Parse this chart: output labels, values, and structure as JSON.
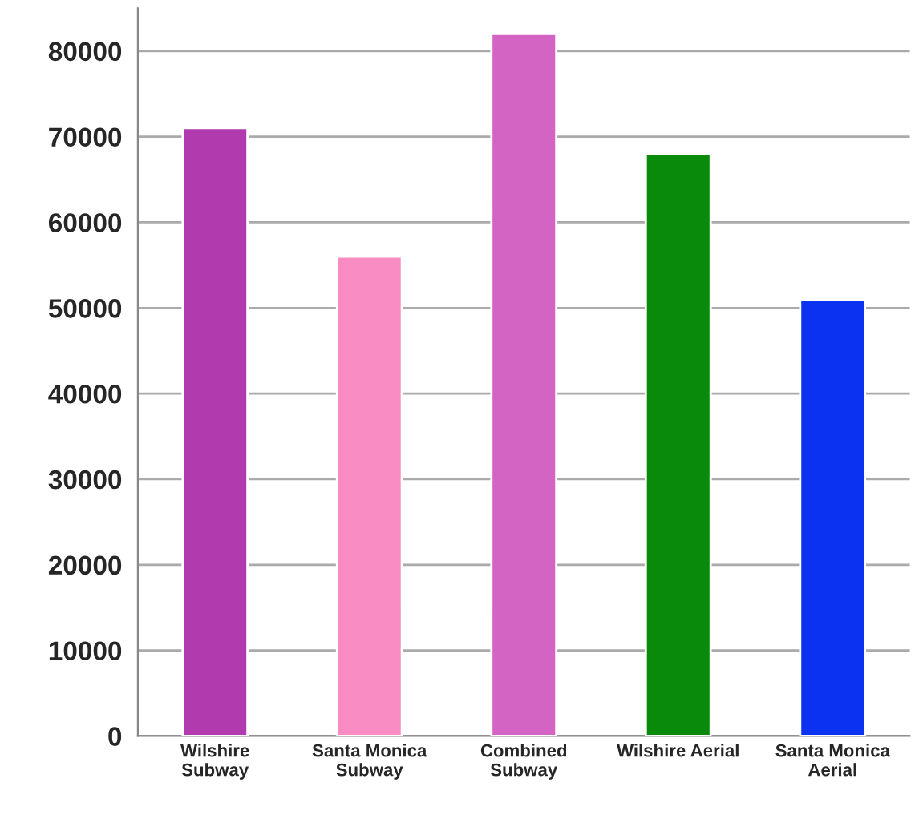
{
  "chart_data": {
    "type": "bar",
    "categories": [
      "Wilshire\nSubway",
      "Santa Monica\nSubway",
      "Combined\nSubway",
      "Wilshire Aerial",
      "Santa Monica\nAerial"
    ],
    "values": [
      71000,
      56000,
      82000,
      68000,
      51000
    ],
    "colors": [
      "#b03aae",
      "#f98cc2",
      "#d464c4",
      "#0a8a0a",
      "#0a32f0"
    ],
    "ylim": [
      0,
      85000
    ],
    "yticks": [
      0,
      10000,
      20000,
      30000,
      40000,
      50000,
      60000,
      70000,
      80000
    ],
    "grid": "y",
    "legend": false
  }
}
